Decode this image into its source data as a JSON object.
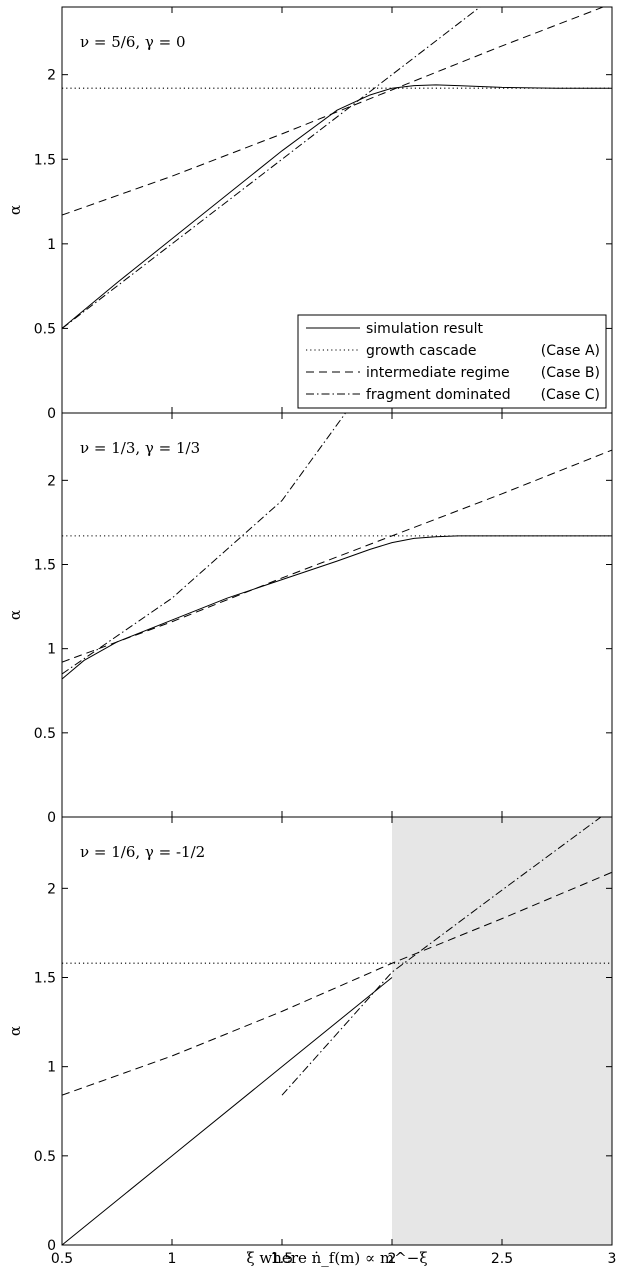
{
  "chart_data": {
    "type": "line",
    "xlabel": "ξ where ṅ_f(m) ∝ m^−ξ",
    "xlim": [
      0.5,
      3
    ],
    "x_ticks": [
      "0.5",
      "1",
      "1.5",
      "2",
      "2.5",
      "3"
    ],
    "ylabel": "α",
    "ylim": [
      0,
      2.4
    ],
    "y_ticks": [
      "0",
      "0.5",
      "1",
      "1.5",
      "2"
    ],
    "grid": false,
    "legend": {
      "placement": "bottom-right of top panel",
      "entries": [
        {
          "label": "simulation result",
          "case": "",
          "style": "solid"
        },
        {
          "label": "growth cascade",
          "case": "(Case A)",
          "style": "dotted"
        },
        {
          "label": "intermediate regime",
          "case": "(Case B)",
          "style": "dashed"
        },
        {
          "label": "fragment dominated",
          "case": "(Case C)",
          "style": "dashdot"
        }
      ]
    },
    "panels": [
      {
        "label": "ν = 5/6, γ = 0",
        "series": [
          {
            "name": "simulation result",
            "style": "solid",
            "x": [
              0.5,
              0.75,
              1.0,
              1.25,
              1.5,
              1.75,
              1.9,
              2.0,
              2.1,
              2.2,
              2.3,
              2.5,
              2.75,
              3.0
            ],
            "y": [
              0.5,
              0.77,
              1.03,
              1.29,
              1.55,
              1.79,
              1.88,
              1.92,
              1.935,
              1.94,
              1.935,
              1.925,
              1.92,
              1.92
            ]
          },
          {
            "name": "growth cascade",
            "style": "dotted",
            "x": [
              0.5,
              3.0
            ],
            "y": [
              1.92,
              1.92
            ]
          },
          {
            "name": "intermediate regime",
            "style": "dashed",
            "x": [
              0.5,
              1.0,
              1.5,
              2.0,
              2.5,
              3.0
            ],
            "y": [
              1.17,
              1.4,
              1.65,
              1.91,
              2.17,
              2.42
            ]
          },
          {
            "name": "fragment dominated",
            "style": "dashdot",
            "x": [
              0.5,
              1.0,
              1.5,
              2.0,
              2.25,
              2.5
            ],
            "y": [
              0.5,
              1.0,
              1.5,
              2.0,
              2.25,
              2.5
            ]
          }
        ]
      },
      {
        "label": "ν = 1/3, γ = 1/3",
        "series": [
          {
            "name": "simulation result",
            "style": "solid",
            "x": [
              0.5,
              0.6,
              0.75,
              1.0,
              1.25,
              1.5,
              1.75,
              1.9,
              2.0,
              2.1,
              2.2,
              2.3,
              2.5,
              2.75,
              3.0
            ],
            "y": [
              0.82,
              0.93,
              1.04,
              1.17,
              1.3,
              1.41,
              1.52,
              1.59,
              1.63,
              1.655,
              1.665,
              1.67,
              1.67,
              1.67,
              1.67
            ]
          },
          {
            "name": "growth cascade",
            "style": "dotted",
            "x": [
              0.5,
              3.0
            ],
            "y": [
              1.67,
              1.67
            ]
          },
          {
            "name": "intermediate regime",
            "style": "dashed",
            "x": [
              0.5,
              1.0,
              1.5,
              2.0,
              2.5,
              3.0
            ],
            "y": [
              0.92,
              1.16,
              1.42,
              1.67,
              1.92,
              2.18
            ]
          },
          {
            "name": "fragment dominated",
            "style": "dashdot",
            "x": [
              0.5,
              1.0,
              1.5,
              1.8
            ],
            "y": [
              0.85,
              1.3,
              1.88,
              2.42
            ]
          }
        ]
      },
      {
        "label": "ν = 1/6, γ = -1/2",
        "shaded_x": [
          2,
          3
        ],
        "series": [
          {
            "name": "simulation result",
            "style": "solid",
            "x": [
              0.5,
              1.0,
              1.5,
              2.0
            ],
            "y": [
              0.0,
              0.5,
              1.0,
              1.5
            ]
          },
          {
            "name": "growth cascade",
            "style": "dotted",
            "x": [
              0.5,
              3.0
            ],
            "y": [
              1.58,
              1.58
            ]
          },
          {
            "name": "intermediate regime",
            "style": "dashed",
            "x": [
              0.5,
              1.0,
              1.5,
              2.0,
              2.5,
              3.0
            ],
            "y": [
              0.84,
              1.06,
              1.31,
              1.58,
              1.83,
              2.09
            ]
          },
          {
            "name": "fragment dominated",
            "style": "dashdot",
            "x": [
              1.5,
              2.0,
              2.5,
              2.95
            ],
            "y": [
              0.84,
              1.53,
              1.99,
              2.4
            ]
          }
        ]
      }
    ]
  }
}
